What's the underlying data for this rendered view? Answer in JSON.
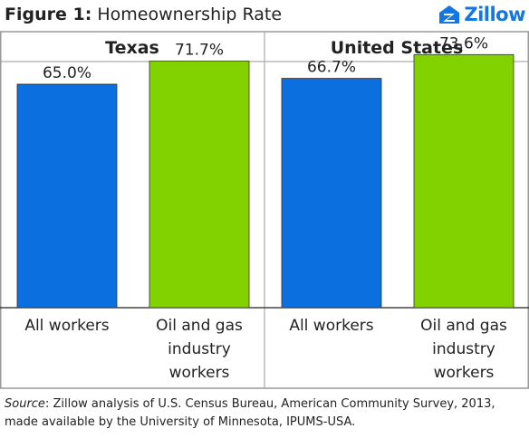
{
  "header": {
    "figure_number": "Figure 1:",
    "title": "Homeownership Rate",
    "logo_text": "Zillow"
  },
  "colors": {
    "all_workers": "#0b6fe0",
    "oil_gas": "#82d200",
    "frame": "#9a9a9a",
    "text": "#222222",
    "logo": "#1277e1"
  },
  "chart_data": [
    {
      "type": "bar",
      "title": "Texas",
      "categories": [
        "All workers",
        "Oil and gas industry workers"
      ],
      "values": [
        65.0,
        71.7
      ],
      "labels": [
        "65.0%",
        "71.7%"
      ],
      "ylim": [
        0,
        100
      ],
      "grid": false
    },
    {
      "type": "bar",
      "title": "United States",
      "categories": [
        "All workers",
        "Oil and gas industry workers"
      ],
      "values": [
        66.7,
        73.6
      ],
      "labels": [
        "66.7%",
        "73.6%"
      ],
      "ylim": [
        0,
        100
      ],
      "grid": false
    }
  ],
  "footer": {
    "source_label": "Source",
    "source_text": ": Zillow analysis of U.S. Census Bureau, American Community Survey, 2013, made available by the University of Minnesota, IPUMS-USA."
  }
}
